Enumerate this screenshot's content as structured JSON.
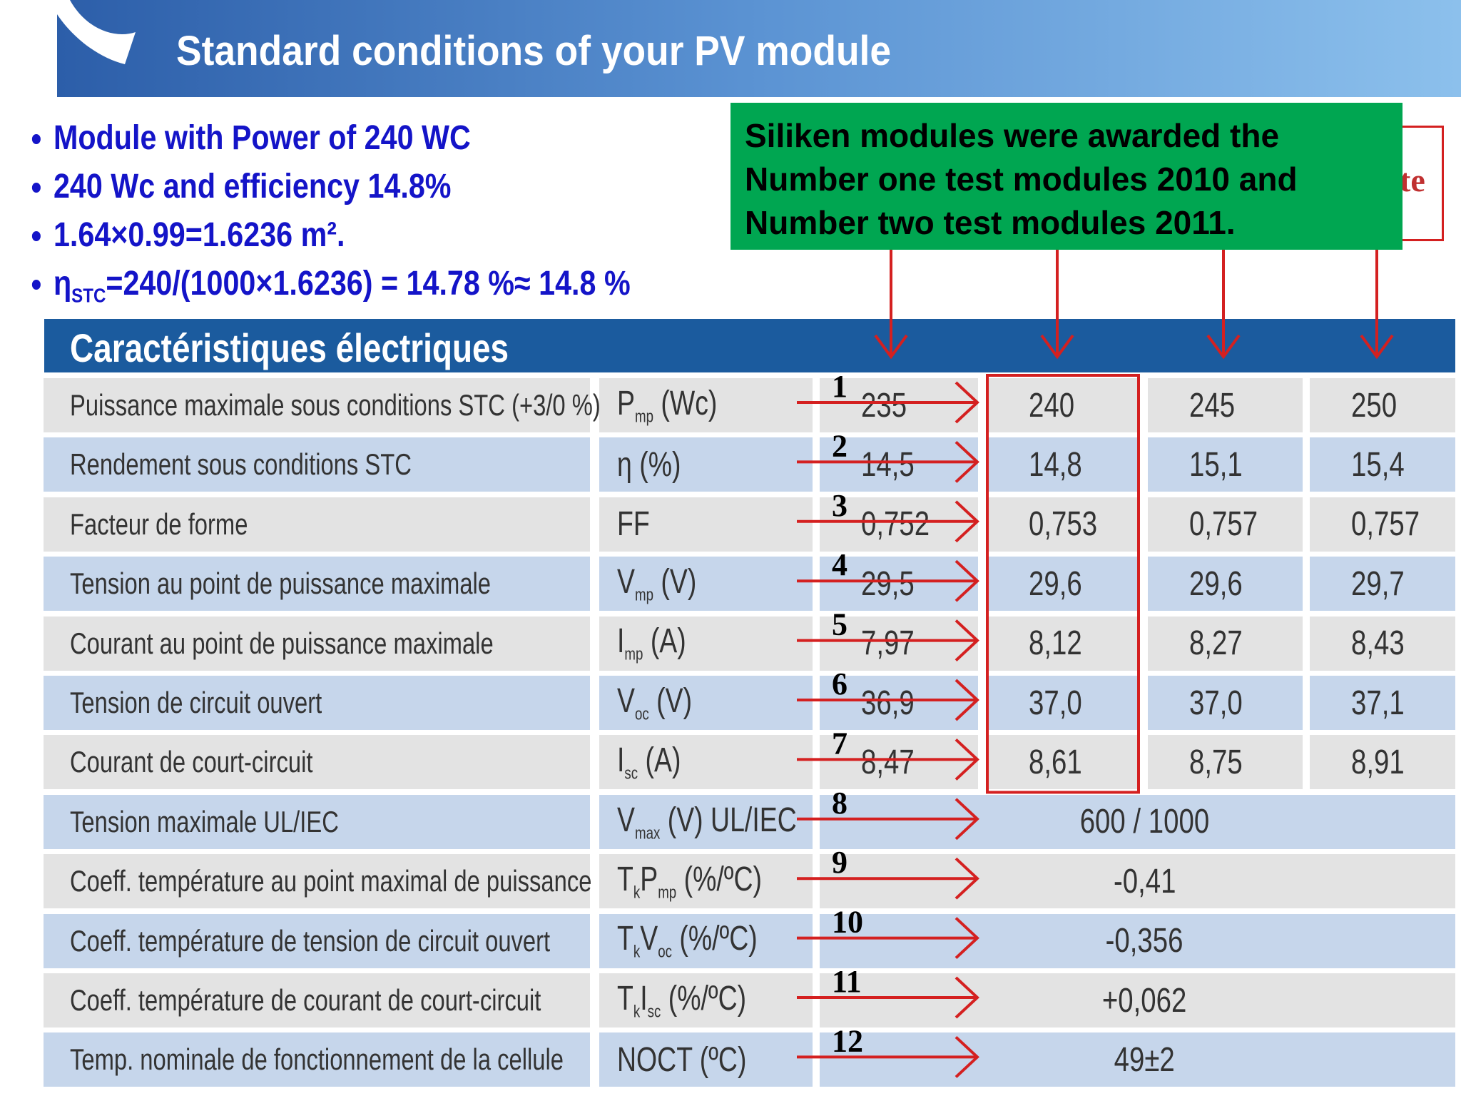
{
  "header": {
    "title": "Standard conditions of your PV module"
  },
  "bullets": [
    {
      "parts": [
        "Module with Power of 240 WC"
      ]
    },
    {
      "parts": [
        "240 Wc and efficiency 14.8%"
      ]
    },
    {
      "parts": [
        "1.64×0.99=1.6236 m²."
      ]
    },
    {
      "parts": [
        "η",
        "STC",
        "=240/(1000×1.6236) = 14.78 %≈ 14.8 %"
      ]
    }
  ],
  "callout": {
    "lines": [
      "Siliken modules were awarded the",
      "Number one test modules 2010 and",
      "Number two test modules 2011."
    ]
  },
  "hidden_label": "te",
  "table": {
    "title": "Caractéristiques électriques",
    "rows": [
      {
        "number": "1",
        "label": "Puissance maximale sous conditions STC (+3/0 %)",
        "symbol": [
          "P",
          "mp",
          " (Wc)"
        ],
        "values": [
          "235",
          "240",
          "245",
          "250"
        ]
      },
      {
        "number": "2",
        "label": "Rendement sous conditions STC",
        "symbol": [
          "η (%)"
        ],
        "values": [
          "14,5",
          "14,8",
          "15,1",
          "15,4"
        ]
      },
      {
        "number": "3",
        "label": "Facteur de forme",
        "symbol": [
          "FF"
        ],
        "values": [
          "0,752",
          "0,753",
          "0,757",
          "0,757"
        ]
      },
      {
        "number": "4",
        "label": "Tension au point de puissance maximale",
        "symbol": [
          "V",
          "mp",
          " (V)"
        ],
        "values": [
          "29,5",
          "29,6",
          "29,6",
          "29,7"
        ]
      },
      {
        "number": "5",
        "label": "Courant au point de puissance maximale",
        "symbol": [
          "I",
          "mp",
          " (A)"
        ],
        "values": [
          "7,97",
          "8,12",
          "8,27",
          "8,43"
        ]
      },
      {
        "number": "6",
        "label": "Tension de circuit ouvert",
        "symbol": [
          "V",
          "oc",
          " (V)"
        ],
        "values": [
          "36,9",
          "37,0",
          "37,0",
          "37,1"
        ]
      },
      {
        "number": "7",
        "label": "Courant de court-circuit",
        "symbol": [
          "I",
          "sc",
          " (A)"
        ],
        "values": [
          "8,47",
          "8,61",
          "8,75",
          "8,91"
        ]
      },
      {
        "number": "8",
        "label": "Tension maximale UL/IEC",
        "symbol": [
          "V",
          "max",
          " (V) UL/IEC"
        ],
        "values": [
          "600 / 1000"
        ]
      },
      {
        "number": "9",
        "label": "Coeff. température au point maximal de puissance",
        "symbol": [
          "T",
          "k",
          "P",
          "mp",
          " (%/ºC)"
        ],
        "values": [
          "-0,41"
        ]
      },
      {
        "number": "10",
        "label": "Coeff. température de tension de circuit ouvert",
        "symbol": [
          "T",
          "k",
          "V",
          "oc",
          " (%/ºC)"
        ],
        "values": [
          "-0,356"
        ]
      },
      {
        "number": "11",
        "label": "Coeff. température de courant de court-circuit",
        "symbol": [
          "T",
          "k",
          "I",
          "sc",
          " (%/ºC)"
        ],
        "values": [
          "+0,062"
        ]
      },
      {
        "number": "12",
        "label": "Temp. nominale de fonctionnement de la cellule",
        "symbol": [
          "NOCT (ºC)"
        ],
        "values": [
          "49±2"
        ]
      }
    ]
  }
}
